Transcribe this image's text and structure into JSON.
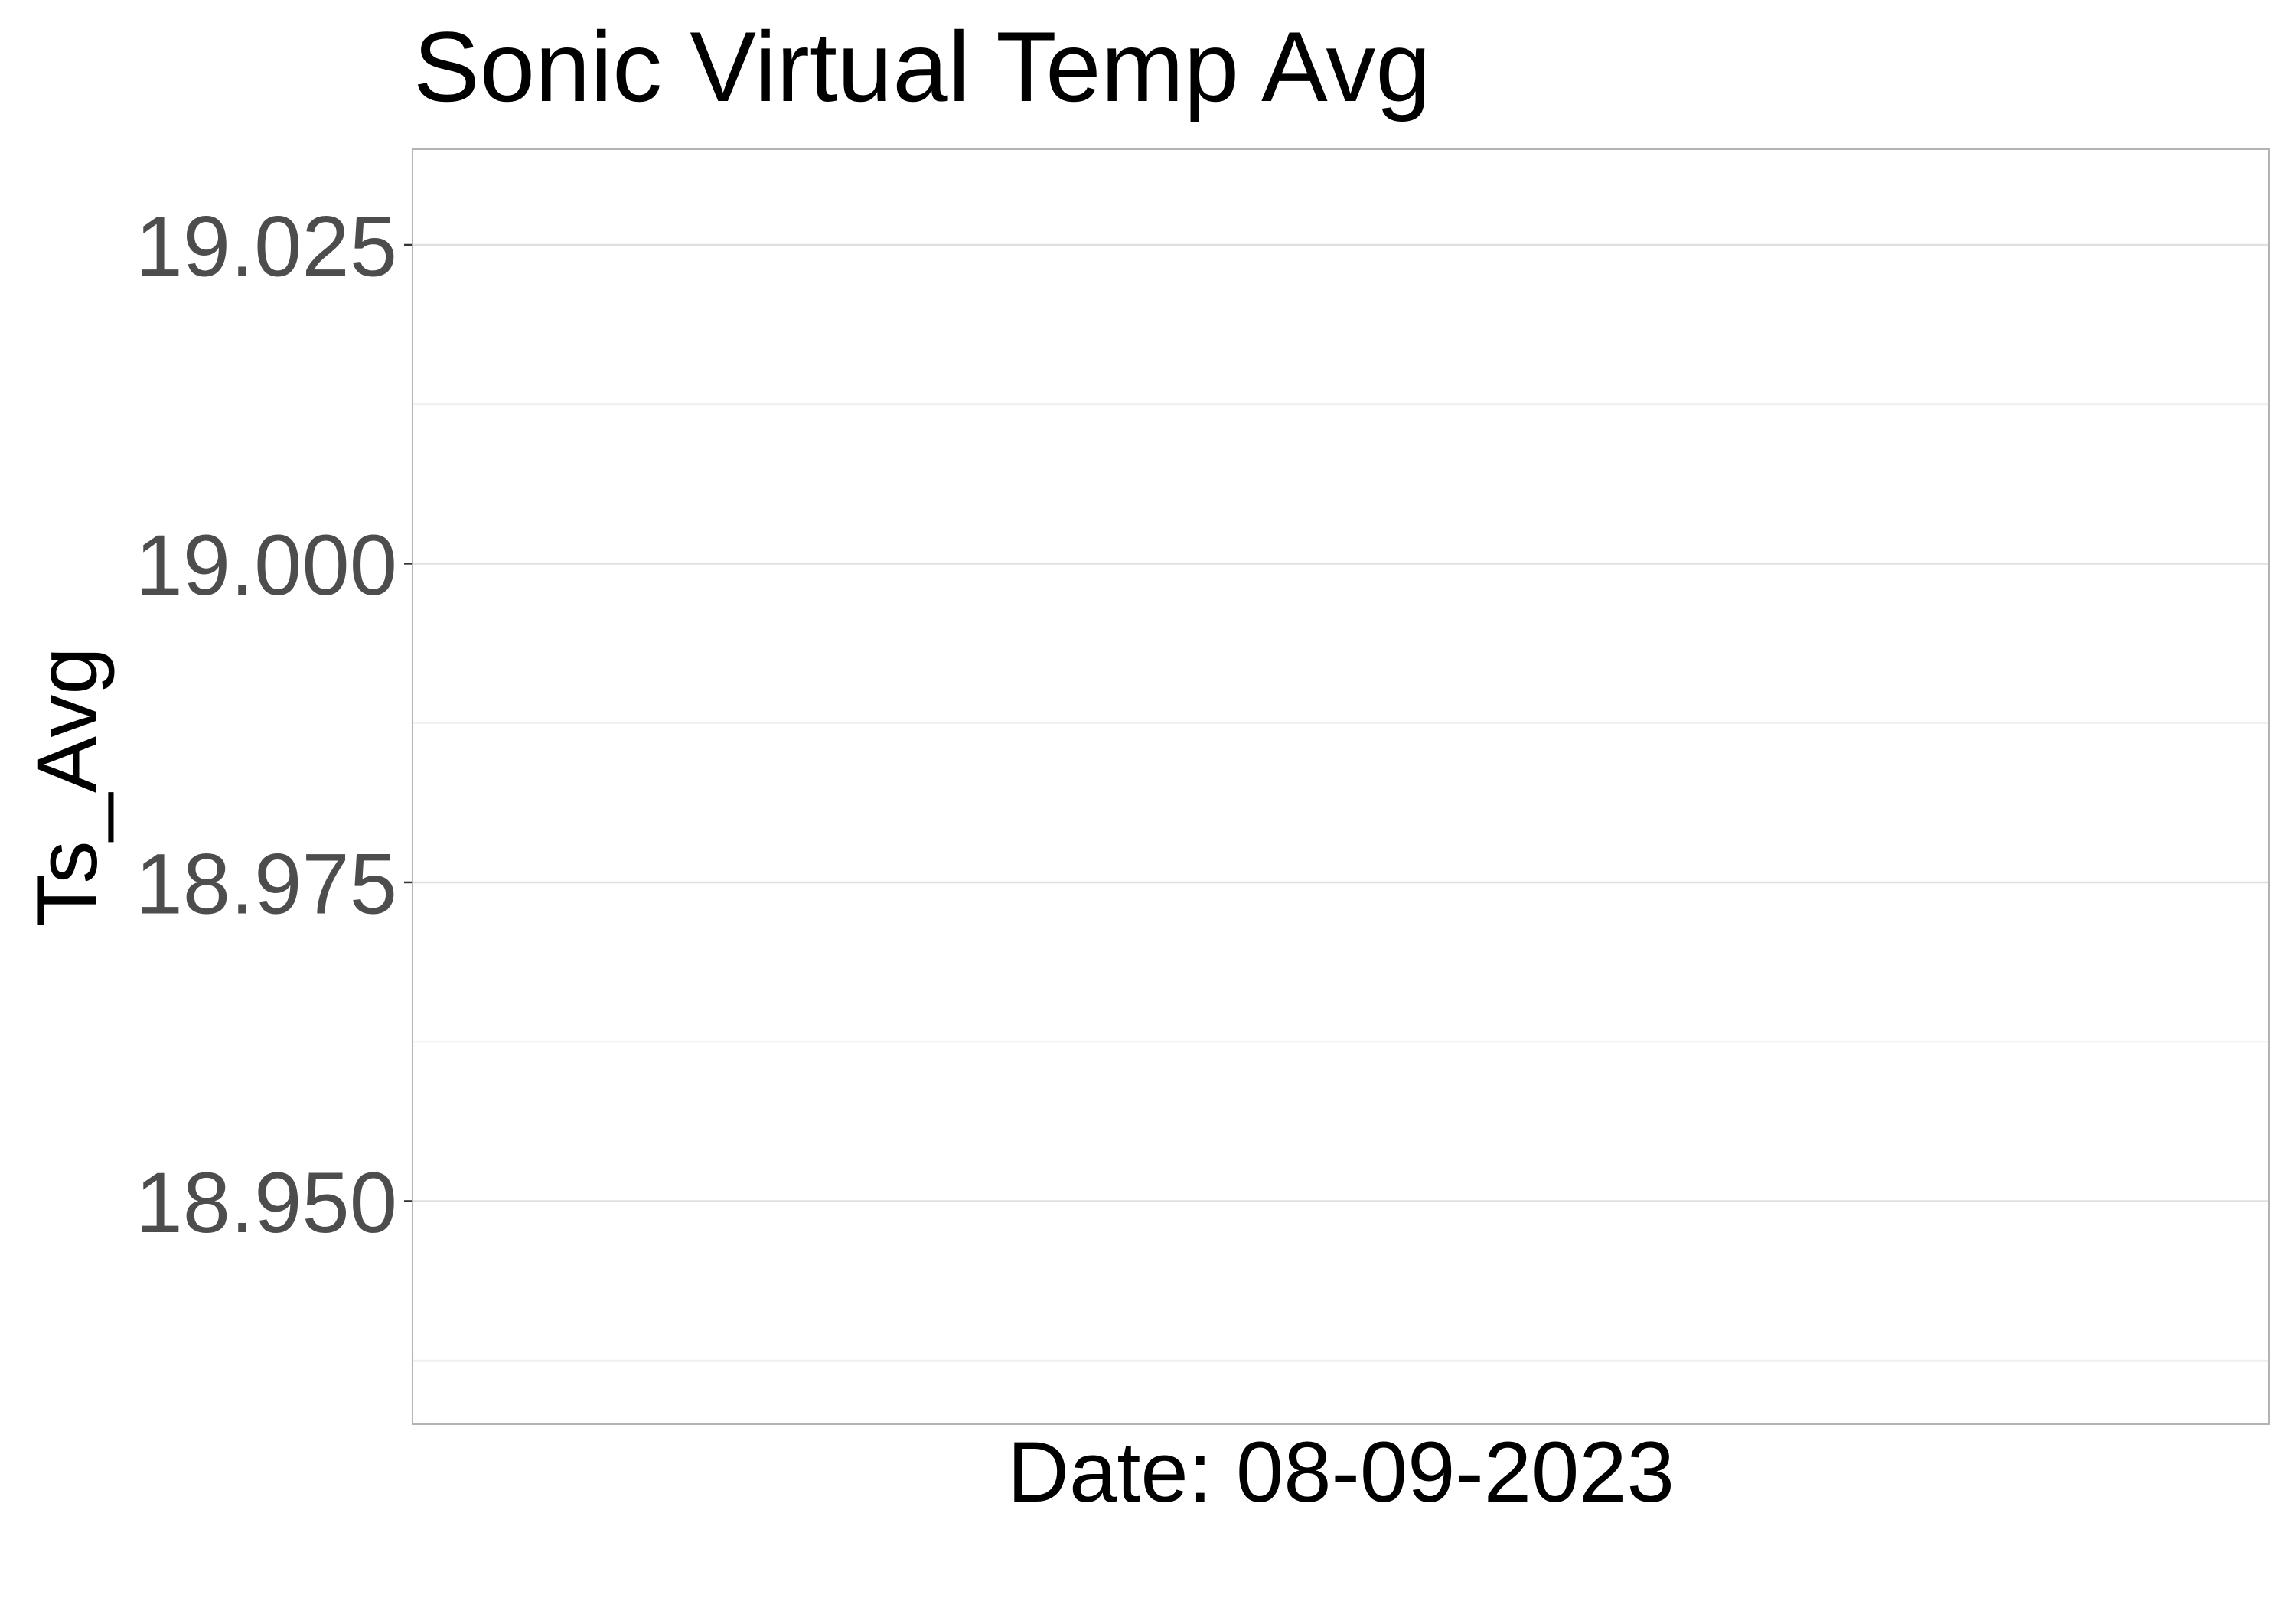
{
  "chart_data": {
    "type": "line",
    "title": "Sonic Virtual Temp Avg",
    "xlabel": "Date: 08-09-2023",
    "ylabel": "Ts_Avg",
    "ylim": [
      18.9325,
      19.0325
    ],
    "y_ticks": [
      {
        "value": 18.95,
        "label": "18.950"
      },
      {
        "value": 18.975,
        "label": "18.975"
      },
      {
        "value": 19.0,
        "label": "19.000"
      },
      {
        "value": 19.025,
        "label": "19.025"
      }
    ],
    "y_minor_gridlines": [
      18.9375,
      18.9625,
      18.9875,
      19.0125
    ],
    "grid": true,
    "series": [
      {
        "values": []
      }
    ],
    "colors": {
      "panel_border": "#b3b3b3",
      "major_grid": "#e0e0e0",
      "minor_grid": "#efefef",
      "tick_label": "#4d4d4d",
      "title": "#000000",
      "axis_title": "#000000"
    }
  }
}
